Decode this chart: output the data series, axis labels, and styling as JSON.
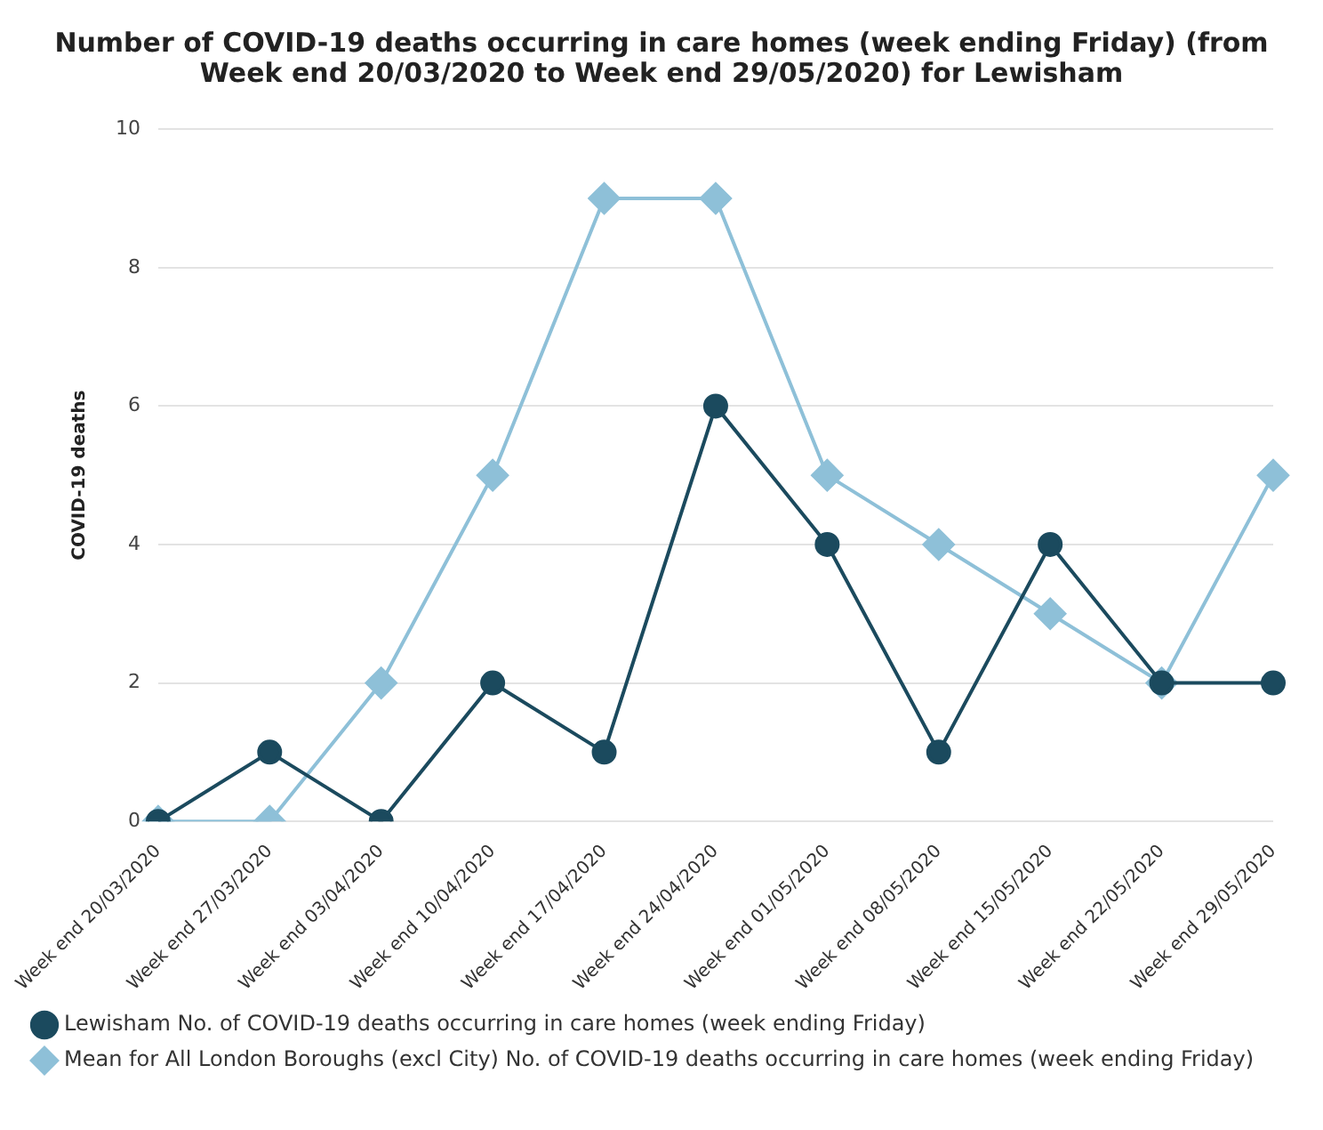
{
  "chart_data": {
    "type": "line",
    "title": "Number of COVID-19 deaths occurring in care homes (week ending Friday) (from Week end 20/03/2020 to Week end 29/05/2020) for Lewisham",
    "ylabel": "COVID-19 deaths",
    "categories": [
      "Week end 20/03/2020",
      "Week end 27/03/2020",
      "Week end 03/04/2020",
      "Week end 10/04/2020",
      "Week end 17/04/2020",
      "Week end 24/04/2020",
      "Week end 01/05/2020",
      "Week end 08/05/2020",
      "Week end 15/05/2020",
      "Week end 22/05/2020",
      "Week end 29/05/2020"
    ],
    "series": [
      {
        "name": "Lewisham No. of COVID-19 deaths occurring in care homes (week ending Friday)",
        "color": "#1b4a5e",
        "marker": "circle",
        "values": [
          0,
          1,
          0,
          2,
          1,
          6,
          4,
          1,
          4,
          2,
          2
        ]
      },
      {
        "name": "Mean for All London Boroughs (excl City) No. of COVID-19 deaths occurring in care homes (week ending Friday)",
        "color": "#8ec0d8",
        "marker": "diamond",
        "values": [
          0,
          0,
          2,
          5,
          9,
          9,
          5,
          4,
          3,
          2,
          5
        ]
      }
    ],
    "ylim": [
      0,
      10
    ],
    "yticks": [
      0,
      2,
      4,
      6,
      8,
      10
    ],
    "grid": "y",
    "legend": "bottom",
    "line_style": "solid"
  }
}
